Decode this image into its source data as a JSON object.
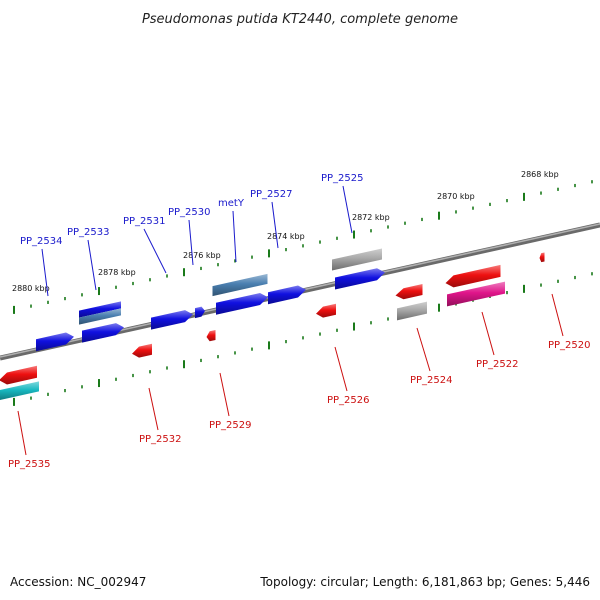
{
  "title": "Pseudomonas putida KT2440, complete genome",
  "footer": {
    "accession": "Accession: NC_002947",
    "summary": "Topology: circular; Length: 6,181,863 bp; Genes: 5,446"
  },
  "scale_labels": [
    "2868 kbp",
    "2870 kbp",
    "2872 kbp",
    "2874 kbp",
    "2876 kbp",
    "2878 kbp",
    "2880 kbp"
  ],
  "colors": {
    "forward_label": "#1a1acc",
    "reverse_label": "#cc1010",
    "backbone": "#808080",
    "ticks": "#1a7a1a",
    "blue": "#1010e0",
    "steel": "#4a7fb0",
    "red": "#ee1010",
    "gray": "#a8a8a8",
    "magenta": "#e0158a",
    "cyan": "#18b8c0"
  },
  "forward_genes": [
    "PP_2534",
    "PP_2533",
    "PP_2531",
    "PP_2530",
    "metY",
    "PP_2527",
    "PP_2525"
  ],
  "reverse_genes": [
    "PP_2535",
    "PP_2532",
    "PP_2529",
    "PP_2526",
    "PP_2524",
    "PP_2522",
    "PP_2520"
  ]
}
